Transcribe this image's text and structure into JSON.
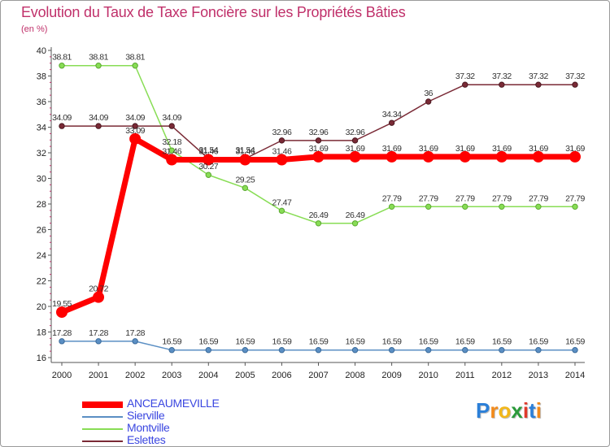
{
  "header": {
    "title": "Evolution du Taux de Taxe Foncière sur les Propriétés Bâties",
    "unit": "(en %)"
  },
  "colors": {
    "title": "#c0306a",
    "legend_text": "#3a46e0",
    "axis": "#555555",
    "anceaumeville": "#ff0000",
    "sierville": "#5b8fc4",
    "montville": "#88dd55",
    "eslettes": "#7a2a36"
  },
  "logo": {
    "letters": [
      "P",
      "r",
      "o",
      "x",
      "i",
      "t",
      "i"
    ]
  },
  "chart_data": {
    "type": "line",
    "title": "Evolution du Taux de Taxe Foncière sur les Propriétés Bâties",
    "ylabel": "(en %)",
    "xlabel": "",
    "x": [
      "2000",
      "2001",
      "2002",
      "2003",
      "2004",
      "2005",
      "2006",
      "2007",
      "2008",
      "2009",
      "2010",
      "2011",
      "2012",
      "2013",
      "2014"
    ],
    "ylim": [
      16,
      40
    ],
    "yticks": [
      "16",
      "18",
      "20",
      "22",
      "24",
      "26",
      "28",
      "30",
      "32",
      "34",
      "36",
      "38",
      "40"
    ],
    "grid": false,
    "legend_position": "bottom-left",
    "series": [
      {
        "name": "ANCEAUMEVILLE",
        "key": "anceaumeville",
        "values": [
          19.55,
          20.72,
          33.09,
          31.46,
          31.46,
          31.46,
          31.46,
          31.69,
          31.69,
          31.69,
          31.69,
          31.69,
          31.69,
          31.69,
          31.69
        ],
        "labels": [
          "19.55",
          "20.72",
          "33.09",
          "31.46",
          "31.46",
          "31.46",
          "31.46",
          "31.69",
          "31.69",
          "31.69",
          "31.69",
          "31.69",
          "31.69",
          "31.69",
          "31.69"
        ]
      },
      {
        "name": "Sierville",
        "key": "sierville",
        "values": [
          17.28,
          17.28,
          17.28,
          16.59,
          16.59,
          16.59,
          16.59,
          16.59,
          16.59,
          16.59,
          16.59,
          16.59,
          16.59,
          16.59,
          16.59
        ],
        "labels": [
          "17.28",
          "17.28",
          "17.28",
          "16.59",
          "16.59",
          "16.59",
          "16.59",
          "16.59",
          "16.59",
          "16.59",
          "16.59",
          "16.59",
          "16.59",
          "16.59",
          "16.59"
        ]
      },
      {
        "name": "Montville",
        "key": "montville",
        "values": [
          38.81,
          38.81,
          38.81,
          32.18,
          30.27,
          29.25,
          27.47,
          26.49,
          26.49,
          27.79,
          27.79,
          27.79,
          27.79,
          27.79,
          27.79
        ],
        "labels": [
          "38.81",
          "38.81",
          "38.81",
          "32.18",
          "30.27",
          "29.25",
          "27.47",
          "26.49",
          "26.49",
          "27.79",
          "27.79",
          "27.79",
          "27.79",
          "27.79",
          "27.79"
        ]
      },
      {
        "name": "Eslettes",
        "key": "eslettes",
        "values": [
          34.09,
          34.09,
          34.09,
          34.09,
          31.54,
          31.54,
          32.96,
          32.96,
          32.96,
          34.34,
          36,
          37.32,
          37.32,
          37.32,
          37.32
        ],
        "labels": [
          "34.09",
          "34.09",
          "34.09",
          "34.09",
          "31.54",
          "31.54",
          "32.96",
          "32.96",
          "32.96",
          "34.34",
          "36",
          "37.32",
          "37.32",
          "37.32",
          "37.32"
        ]
      }
    ]
  }
}
